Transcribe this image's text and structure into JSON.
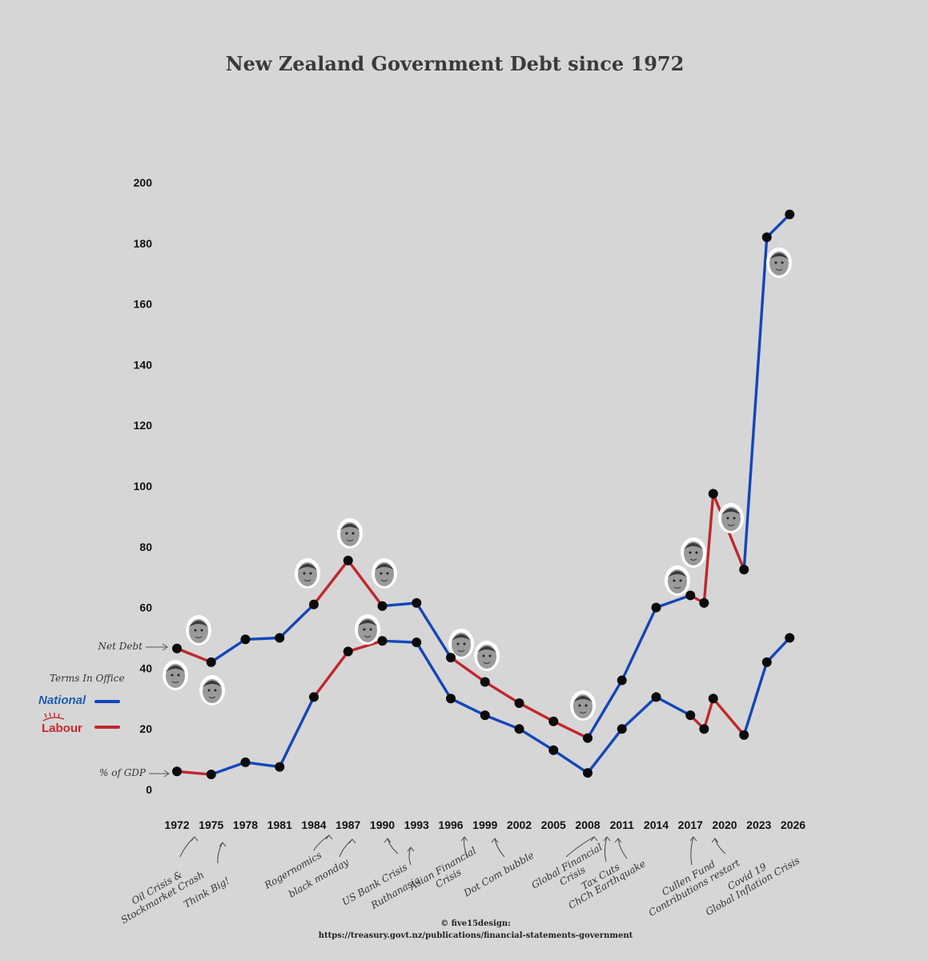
{
  "colors": {
    "national": "#1446b8",
    "labour": "#c0272d",
    "marker": "#0a0a0a",
    "background": "#d6d6d6"
  },
  "chart_data": {
    "type": "line",
    "title": "New Zealand Government Debt since 1972",
    "ylim": [
      0,
      200
    ],
    "yticks": [
      0,
      20,
      40,
      60,
      80,
      100,
      120,
      140,
      160,
      180,
      200
    ],
    "xticks": [
      "1972",
      "1975",
      "1978",
      "1981",
      "1984",
      "1987",
      "1990",
      "1993",
      "1996",
      "1999",
      "2002",
      "2005",
      "2008",
      "2011",
      "2014",
      "2017",
      "2020",
      "2023",
      "2026"
    ],
    "xlim": [
      1972,
      2026
    ],
    "series": [
      {
        "name": "Net Debt",
        "points": [
          {
            "x": 1972,
            "y": 46.5,
            "party": "labour"
          },
          {
            "x": 1975,
            "y": 42,
            "party": "national"
          },
          {
            "x": 1978,
            "y": 49.5,
            "party": "national"
          },
          {
            "x": 1981,
            "y": 50,
            "party": "national"
          },
          {
            "x": 1984,
            "y": 61,
            "party": "labour"
          },
          {
            "x": 1987,
            "y": 75.5,
            "party": "labour"
          },
          {
            "x": 1990,
            "y": 60.5,
            "party": "national"
          },
          {
            "x": 1993,
            "y": 61.5,
            "party": "national"
          },
          {
            "x": 1996,
            "y": 43.5,
            "party": "labour"
          },
          {
            "x": 1999,
            "y": 35.5,
            "party": "labour"
          },
          {
            "x": 2002,
            "y": 28.5,
            "party": "labour"
          },
          {
            "x": 2005,
            "y": 22.5,
            "party": "labour"
          },
          {
            "x": 2008,
            "y": 17,
            "party": "national"
          },
          {
            "x": 2011,
            "y": 36,
            "party": "national"
          },
          {
            "x": 2014,
            "y": 60,
            "party": "national"
          },
          {
            "x": 2017,
            "y": 64,
            "party": "labour"
          },
          {
            "x": 2018.2,
            "y": 61.5,
            "party": "labour"
          },
          {
            "x": 2019,
            "y": 97.5,
            "party": "labour"
          },
          {
            "x": 2021.7,
            "y": 72.5,
            "party": "national"
          },
          {
            "x": 2023.7,
            "y": 182,
            "party": "national"
          },
          {
            "x": 2025.7,
            "y": 189.5,
            "party": null
          }
        ]
      },
      {
        "name": "% of GDP",
        "points": [
          {
            "x": 1972,
            "y": 6,
            "party": "labour"
          },
          {
            "x": 1975,
            "y": 5,
            "party": "national"
          },
          {
            "x": 1978,
            "y": 9,
            "party": "national"
          },
          {
            "x": 1981,
            "y": 7.5,
            "party": "national"
          },
          {
            "x": 1984,
            "y": 30.5,
            "party": "labour"
          },
          {
            "x": 1987,
            "y": 45.5,
            "party": "labour"
          },
          {
            "x": 1990,
            "y": 49,
            "party": "national"
          },
          {
            "x": 1993,
            "y": 48.5,
            "party": "national"
          },
          {
            "x": 1996,
            "y": 30,
            "party": "national"
          },
          {
            "x": 1999,
            "y": 24.5,
            "party": "national"
          },
          {
            "x": 2002,
            "y": 20,
            "party": "national"
          },
          {
            "x": 2005,
            "y": 13,
            "party": "national"
          },
          {
            "x": 2008,
            "y": 5.5,
            "party": "national"
          },
          {
            "x": 2011,
            "y": 20,
            "party": "national"
          },
          {
            "x": 2014,
            "y": 30.5,
            "party": "national"
          },
          {
            "x": 2017,
            "y": 24.5,
            "party": "labour"
          },
          {
            "x": 2018.2,
            "y": 20,
            "party": "labour"
          },
          {
            "x": 2019,
            "y": 30,
            "party": "labour"
          },
          {
            "x": 2021.7,
            "y": 18,
            "party": "national"
          },
          {
            "x": 2023.7,
            "y": 42,
            "party": "national"
          },
          {
            "x": 2025.7,
            "y": 50,
            "party": null
          }
        ]
      }
    ],
    "series_labels": {
      "net_debt": "Net Debt",
      "gdp": "% of GDP"
    },
    "legend": {
      "title": "Terms In Office",
      "national": "National",
      "labour": "Labour"
    },
    "annotations": [
      {
        "year": 1973.5,
        "lines": [
          "Oil Crisis &",
          "Stockmarket Crash"
        ]
      },
      {
        "year": 1975.5,
        "lines": [
          "Think Big!"
        ]
      },
      {
        "year": 1985,
        "lines": [
          "Rogernomics"
        ]
      },
      {
        "year": 1987.2,
        "lines": [
          "black monday"
        ]
      },
      {
        "year": 1990.5,
        "lines": [
          "US Bank Crisis"
        ]
      },
      {
        "year": 1992,
        "lines": [
          "Ruthanasia"
        ]
      },
      {
        "year": 1996.5,
        "lines": [
          "Asian Financial",
          "Crisis"
        ]
      },
      {
        "year": 2000,
        "lines": [
          "Dot Com bubble"
        ]
      },
      {
        "year": 2007.2,
        "lines": [
          "Global Financial",
          "Crisis"
        ]
      },
      {
        "year": 2010,
        "lines": [
          "Tax Cuts"
        ]
      },
      {
        "year": 2011,
        "lines": [
          "ChCh Earthquake"
        ]
      },
      {
        "year": 2017.5,
        "lines": [
          "Cullen Fund",
          "Contributions restart"
        ]
      },
      {
        "year": 2019.5,
        "lines": [
          "Covid 19",
          "Global Inflation Crisis"
        ]
      }
    ],
    "credits": [
      "© five15design:",
      "https://treasury.govt.nz/publications/financial-statements-government"
    ]
  }
}
